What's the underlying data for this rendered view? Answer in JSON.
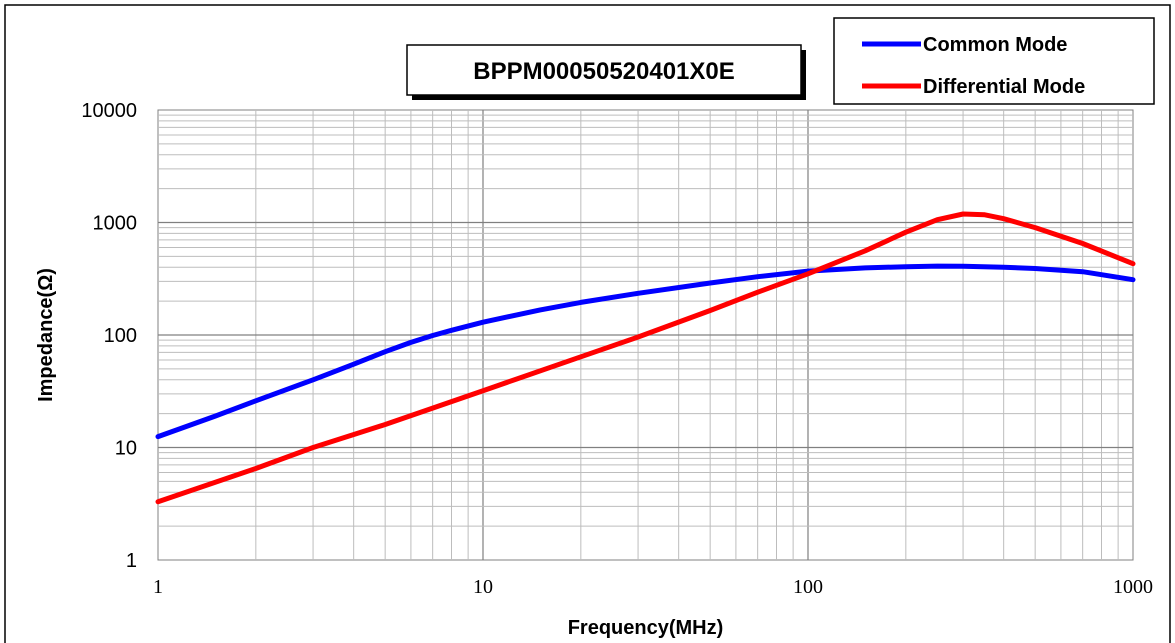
{
  "chart_data": {
    "type": "line",
    "title": "BPPM00050520401X0E",
    "xlabel": "Frequency(MHz)",
    "ylabel": "Impedance(Ω)",
    "x_scale": "log",
    "y_scale": "log",
    "xlim": [
      1,
      1000
    ],
    "ylim": [
      1,
      10000
    ],
    "x_ticks": [
      "1",
      "10",
      "100",
      "1000"
    ],
    "y_ticks": [
      "1",
      "10",
      "100",
      "1000",
      "10000"
    ],
    "grid": true,
    "legend_position": "top-right",
    "series": [
      {
        "name": "Common Mode",
        "color": "#0000ff",
        "x": [
          1,
          1.5,
          2,
          3,
          4,
          5,
          6,
          7,
          8,
          10,
          15,
          20,
          30,
          50,
          70,
          100,
          150,
          200,
          250,
          300,
          400,
          500,
          700,
          1000
        ],
        "y": [
          12.5,
          19,
          26,
          40,
          55,
          71,
          86,
          99,
          110,
          130,
          167,
          195,
          235,
          290,
          330,
          370,
          395,
          405,
          410,
          408,
          400,
          390,
          365,
          310
        ]
      },
      {
        "name": "Differential Mode",
        "color": "#ff0000",
        "x": [
          1,
          2,
          3,
          5,
          10,
          20,
          30,
          50,
          70,
          100,
          150,
          200,
          250,
          300,
          350,
          400,
          500,
          700,
          1000
        ],
        "y": [
          3.3,
          6.5,
          10,
          16,
          32,
          64,
          96,
          165,
          240,
          350,
          560,
          820,
          1060,
          1190,
          1170,
          1080,
          900,
          650,
          430
        ]
      }
    ]
  }
}
